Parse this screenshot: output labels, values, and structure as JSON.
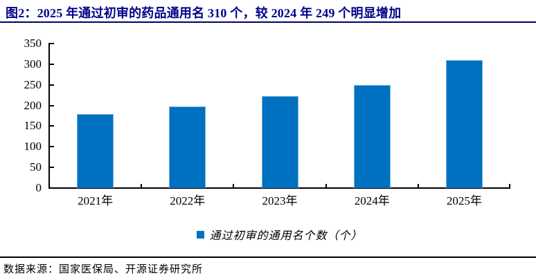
{
  "title": "图2：2025 年通过初审的药品通用名 310 个，较 2024 年 249 个明显增加",
  "footer": {
    "source": "数据来源：国家医保局、开源证券研究所"
  },
  "colors": {
    "bar": "#0070C0",
    "bar_edge": "#73B1E2",
    "title_text": "#00008B",
    "title_rule": "#00006B",
    "axis": "#000000",
    "footer_rule": "#000000",
    "text": "#000000"
  },
  "chart_data": {
    "type": "bar",
    "categories": [
      "2021年",
      "2022年",
      "2023年",
      "2024年",
      "2025年"
    ],
    "values": [
      179,
      198,
      222,
      249,
      310
    ],
    "series_name": "通过初审的通用名个数（个）",
    "title": "2025 年通过初审的药品通用名 310 个，较 2024 年 249 个明显增加",
    "xlabel": "",
    "ylabel": "",
    "ylim": [
      0,
      350
    ],
    "yticks": [
      0,
      50,
      100,
      150,
      200,
      250,
      300,
      350
    ],
    "grid": false,
    "legend_position": "bottom"
  }
}
